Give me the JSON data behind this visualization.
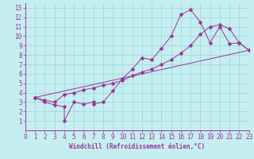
{
  "xlabel": "Windchill (Refroidissement éolien,°C)",
  "bg_color": "#c5eef0",
  "grid_color": "#9dd4d8",
  "line_color": "#993399",
  "xlim": [
    0,
    23
  ],
  "ylim": [
    0,
    13.5
  ],
  "xticks": [
    0,
    1,
    2,
    3,
    4,
    5,
    6,
    7,
    8,
    9,
    10,
    11,
    12,
    13,
    14,
    15,
    16,
    17,
    18,
    19,
    20,
    21,
    22,
    23
  ],
  "yticks": [
    1,
    2,
    3,
    4,
    5,
    6,
    7,
    8,
    9,
    10,
    11,
    12,
    13
  ],
  "curve1_x": [
    1,
    2,
    3,
    4,
    4,
    5,
    6,
    7,
    7,
    8,
    9,
    10,
    11,
    12,
    13,
    14,
    15,
    16,
    17,
    18,
    19,
    20,
    21,
    22,
    23
  ],
  "curve1_y": [
    3.5,
    3.0,
    2.7,
    2.5,
    1.0,
    3.0,
    2.8,
    3.0,
    2.8,
    3.0,
    4.2,
    5.5,
    6.5,
    7.7,
    7.5,
    8.7,
    10.0,
    12.3,
    12.8,
    11.5,
    9.3,
    11.0,
    9.2,
    9.3,
    8.5
  ],
  "curve2_x": [
    1,
    2,
    3,
    4,
    5,
    6,
    7,
    8,
    9,
    10,
    11,
    12,
    13,
    14,
    15,
    16,
    17,
    18,
    19,
    20,
    21,
    22,
    23
  ],
  "curve2_y": [
    3.5,
    3.2,
    3.0,
    3.8,
    4.0,
    4.3,
    4.5,
    4.8,
    5.0,
    5.3,
    5.8,
    6.2,
    6.5,
    7.0,
    7.5,
    8.2,
    9.0,
    10.2,
    11.0,
    11.2,
    10.8,
    9.3,
    8.5
  ],
  "line3_x": [
    1,
    23
  ],
  "line3_y": [
    3.5,
    8.5
  ],
  "marker": "D",
  "marker_size": 2.5,
  "tick_fontsize": 5.5,
  "xlabel_fontsize": 5.5
}
